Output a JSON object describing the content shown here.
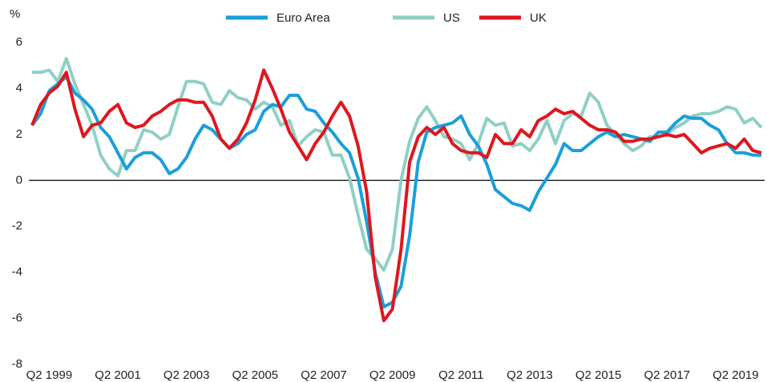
{
  "chart_data": {
    "type": "line",
    "y_label": "%",
    "categories": [
      null,
      null,
      "Q2 1999",
      null,
      null,
      null,
      null,
      null,
      null,
      null,
      "Q2 2001",
      null,
      null,
      null,
      null,
      null,
      null,
      null,
      "Q2 2003",
      null,
      null,
      null,
      null,
      null,
      null,
      null,
      "Q2 2005",
      null,
      null,
      null,
      null,
      null,
      null,
      null,
      "Q2 2007",
      null,
      null,
      null,
      null,
      null,
      null,
      null,
      "Q2 2009",
      null,
      null,
      null,
      null,
      null,
      null,
      null,
      "Q2 2011",
      null,
      null,
      null,
      null,
      null,
      null,
      null,
      "Q2 2013",
      null,
      null,
      null,
      null,
      null,
      null,
      null,
      "Q2 2015",
      null,
      null,
      null,
      null,
      null,
      null,
      null,
      "Q2 2017",
      null,
      null,
      null,
      null,
      null,
      null,
      null,
      "Q2 2019",
      null,
      null,
      null
    ],
    "series": [
      {
        "name": "US",
        "color": "#8fd0c5",
        "values": [
          4.7,
          4.7,
          4.8,
          4.3,
          5.3,
          4.2,
          3.3,
          2.4,
          1.1,
          0.5,
          0.2,
          1.3,
          1.3,
          2.2,
          2.1,
          1.8,
          2.0,
          3.2,
          4.3,
          4.3,
          4.2,
          3.4,
          3.3,
          3.9,
          3.6,
          3.5,
          3.1,
          3.4,
          3.2,
          2.4,
          2.6,
          1.5,
          1.9,
          2.2,
          2.1,
          1.1,
          1.1,
          0.1,
          -1.5,
          -3.0,
          -3.4,
          -3.9,
          -3.0,
          0.0,
          1.7,
          2.7,
          3.2,
          2.6,
          1.9,
          1.8,
          1.6,
          0.9,
          1.6,
          2.7,
          2.4,
          2.5,
          1.5,
          1.6,
          1.3,
          1.8,
          2.6,
          1.6,
          2.6,
          2.9,
          2.8,
          3.8,
          3.4,
          2.4,
          2.0,
          1.6,
          1.3,
          1.5,
          1.9,
          1.9,
          2.0,
          2.3,
          2.5,
          2.8,
          2.9,
          2.9,
          3.0,
          3.2,
          3.1,
          2.5,
          2.7,
          2.3
        ]
      },
      {
        "name": "Euro Area",
        "color": "#1a9fdb",
        "values": [
          2.4,
          2.9,
          3.9,
          4.2,
          4.5,
          3.8,
          3.5,
          3.1,
          2.3,
          1.9,
          1.2,
          0.5,
          1.0,
          1.2,
          1.2,
          0.9,
          0.3,
          0.5,
          1.0,
          1.8,
          2.4,
          2.2,
          1.8,
          1.4,
          1.6,
          2.0,
          2.2,
          3.0,
          3.3,
          3.2,
          3.7,
          3.7,
          3.1,
          3.0,
          2.5,
          2.1,
          1.6,
          1.2,
          0.1,
          -1.8,
          -4.0,
          -5.5,
          -5.3,
          -4.6,
          -2.4,
          0.8,
          2.1,
          2.3,
          2.4,
          2.5,
          2.8,
          2.0,
          1.5,
          0.7,
          -0.4,
          -0.7,
          -1.0,
          -1.1,
          -1.3,
          -0.5,
          0.1,
          0.7,
          1.6,
          1.3,
          1.3,
          1.6,
          1.9,
          2.1,
          1.9,
          2.0,
          1.9,
          1.8,
          1.7,
          2.1,
          2.1,
          2.5,
          2.8,
          2.7,
          2.7,
          2.4,
          2.2,
          1.6,
          1.2,
          1.2,
          1.1,
          1.1
        ]
      },
      {
        "name": "UK",
        "color": "#e0161e",
        "values": [
          2.4,
          3.3,
          3.8,
          4.1,
          4.7,
          3.1,
          1.9,
          2.4,
          2.5,
          3.0,
          3.3,
          2.5,
          2.3,
          2.4,
          2.8,
          3.0,
          3.3,
          3.5,
          3.5,
          3.4,
          3.4,
          2.8,
          1.8,
          1.4,
          1.8,
          2.5,
          3.5,
          4.8,
          4.0,
          3.1,
          2.1,
          1.5,
          0.9,
          1.6,
          2.1,
          2.8,
          3.4,
          2.8,
          1.5,
          -0.5,
          -4.2,
          -6.1,
          -5.6,
          -3.0,
          0.8,
          1.9,
          2.3,
          2.0,
          2.3,
          1.6,
          1.3,
          1.2,
          1.2,
          1.0,
          2.0,
          1.6,
          1.6,
          2.2,
          1.9,
          2.6,
          2.8,
          3.1,
          2.9,
          3.0,
          2.7,
          2.4,
          2.2,
          2.2,
          2.1,
          1.7,
          1.7,
          1.8,
          1.8,
          1.9,
          2.0,
          1.9,
          2.0,
          1.6,
          1.2,
          1.4,
          1.5,
          1.6,
          1.4,
          1.8,
          1.3,
          1.2
        ]
      }
    ],
    "legend_order": [
      1,
      0,
      2
    ],
    "ylim": [
      -8,
      6
    ],
    "yticks": [
      -8,
      -6,
      -4,
      -2,
      0,
      2,
      4,
      6
    ],
    "zero_line": true,
    "grid": false
  }
}
